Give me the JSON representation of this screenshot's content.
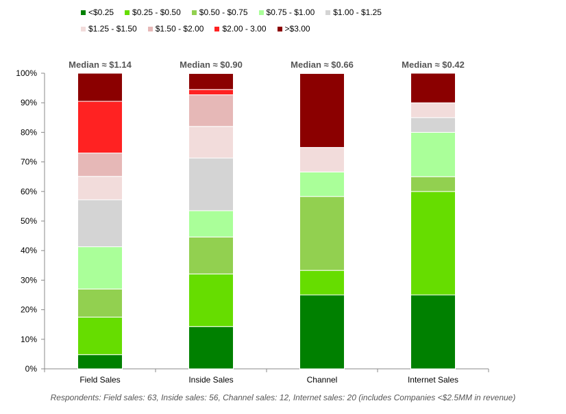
{
  "chart_data": {
    "type": "bar",
    "stacked": true,
    "categories": [
      "Field Sales",
      "Inside Sales",
      "Channel",
      "Internet Sales"
    ],
    "annotations": [
      "Median ≈ $1.14",
      "Median ≈ $0.90",
      "Median ≈ $0.66",
      "Median ≈ $0.42"
    ],
    "yticks": [
      "0%",
      "10%",
      "20%",
      "30%",
      "40%",
      "50%",
      "60%",
      "70%",
      "80%",
      "90%",
      "100%"
    ],
    "ylim": [
      0,
      100
    ],
    "grid": false,
    "legend_position": "top",
    "series": [
      {
        "name": "<$0.25",
        "color": "#008000",
        "values": [
          4.8,
          14.3,
          25.0,
          25.0
        ]
      },
      {
        "name": "$0.25 - $0.50",
        "color": "#66dd00",
        "values": [
          12.7,
          17.8,
          8.3,
          35.0
        ]
      },
      {
        "name": "$0.50 - $0.75",
        "color": "#92d050",
        "values": [
          9.5,
          12.5,
          25.0,
          5.0
        ]
      },
      {
        "name": "$0.75 - $1.00",
        "color": "#aaff99",
        "values": [
          14.3,
          8.9,
          8.3,
          15.0
        ]
      },
      {
        "name": "$1.00 - $1.25",
        "color": "#d4d4d4",
        "values": [
          15.9,
          17.8,
          0,
          5.0
        ]
      },
      {
        "name": "$1.25 - $1.50",
        "color": "#f2dcdb",
        "values": [
          7.9,
          10.7,
          8.3,
          5.0
        ]
      },
      {
        "name": "$1.50 - $2.00",
        "color": "#e6b8b7",
        "values": [
          7.9,
          10.7,
          0,
          0
        ]
      },
      {
        "name": "$2.00 - 3.00",
        "color": "#ff2222",
        "values": [
          17.5,
          1.8,
          0,
          0
        ]
      },
      {
        "name": ">$3.00",
        "color": "#8b0000",
        "values": [
          9.5,
          5.4,
          25.0,
          10.0
        ]
      }
    ]
  },
  "footnote": "Respondents: Field sales: 63, Inside sales: 56, Channel sales: 12, Internet sales: 20 (includes Companies <$2.5MM in revenue)"
}
